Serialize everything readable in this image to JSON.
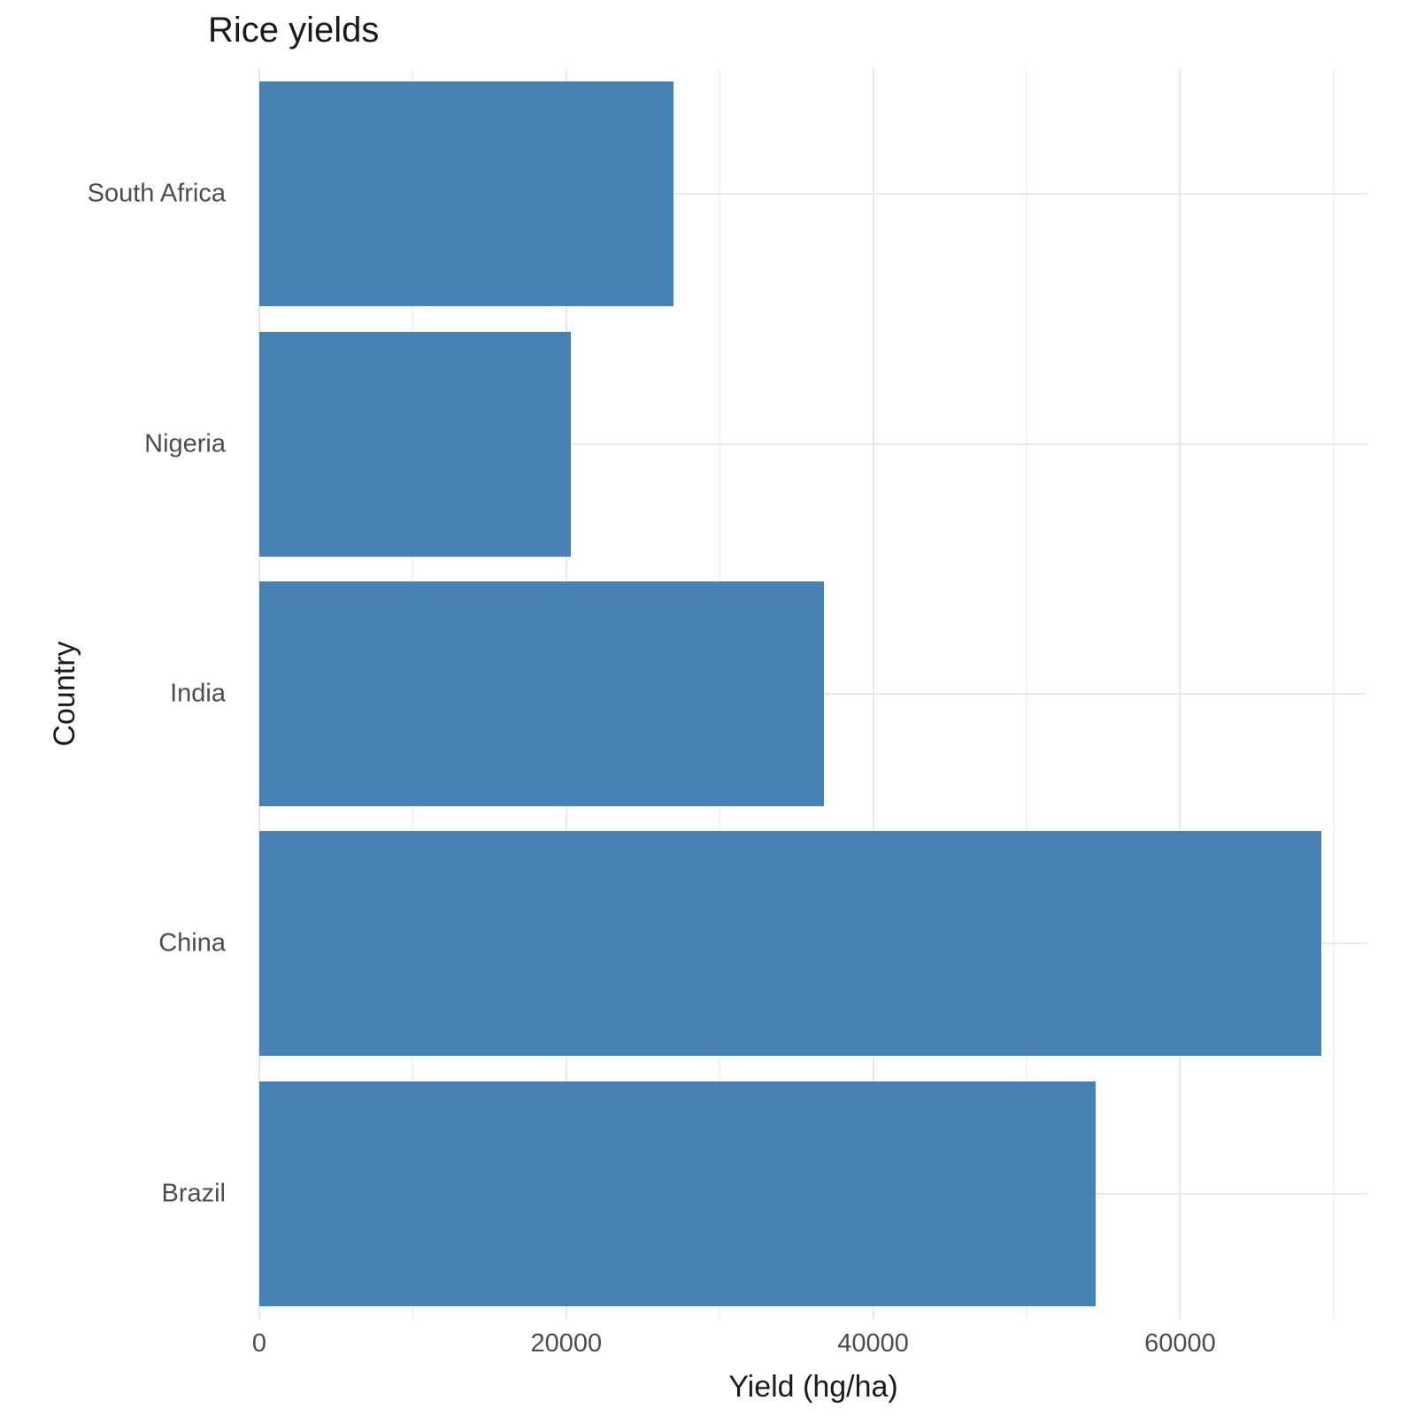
{
  "chart_data": {
    "type": "bar",
    "orientation": "horizontal",
    "title": "Rice yields",
    "xlabel": "Yield (hg/ha)",
    "ylabel": "Country",
    "categories": [
      "South Africa",
      "Nigeria",
      "India",
      "China",
      "Brazil"
    ],
    "values": [
      27000,
      20300,
      36800,
      69200,
      54500
    ],
    "xlim": [
      0,
      72200
    ],
    "x_major_ticks": [
      0,
      20000,
      40000,
      60000
    ],
    "x_major_tick_labels": [
      "0",
      "20000",
      "40000",
      "60000"
    ],
    "x_minor_ticks": [
      10000,
      30000,
      50000,
      70000
    ],
    "bar_width_ratio": 0.9,
    "legend": "none",
    "grid": "on",
    "colors": {
      "bar_fill": "#4682B4",
      "grid_major": "#e8e8e8",
      "grid_minor": "#f2f2f2",
      "tick_text": "#4d4d4d",
      "title_text": "#1a1a1a",
      "background": "#ffffff"
    }
  }
}
